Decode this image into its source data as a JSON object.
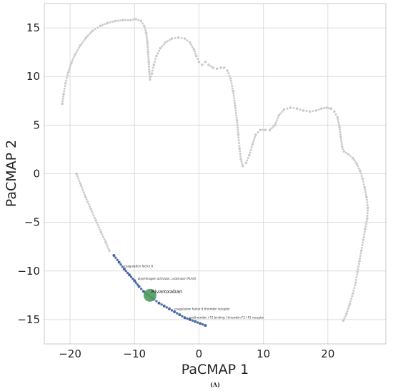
{
  "figure": {
    "caption": "(A)"
  },
  "chart_data": {
    "type": "scatter",
    "title": "",
    "xlabel": "PaCMAP 1",
    "ylabel": "PaCMAP 2",
    "xlim": [
      -24,
      29
    ],
    "ylim": [
      -17.5,
      17.5
    ],
    "xticks": [
      -20,
      -10,
      0,
      10,
      20
    ],
    "yticks": [
      -15,
      -10,
      -5,
      0,
      5,
      10,
      15
    ],
    "xtick_labels": [
      "−20",
      "−10",
      "0",
      "10",
      "20"
    ],
    "ytick_labels": [
      "−15",
      "−10",
      "−5",
      "0",
      "5",
      "10",
      "15"
    ],
    "grid": true,
    "colors": {
      "background_points": "#c8c8c8",
      "highlight_points": "#3d5f9e",
      "focus_point": "#4f9a5e"
    },
    "series": [
      {
        "role": "background",
        "color": "#c8c8c8",
        "points": [
          [
            -21.2,
            7.2
          ],
          [
            -21.0,
            8.2
          ],
          [
            -20.7,
            9.3
          ],
          [
            -20.3,
            10.4
          ],
          [
            -19.8,
            11.4
          ],
          [
            -19.2,
            12.3
          ],
          [
            -18.4,
            13.2
          ],
          [
            -17.5,
            14.0
          ],
          [
            -16.5,
            14.7
          ],
          [
            -15.3,
            15.2
          ],
          [
            -14.2,
            15.5
          ],
          [
            -13.0,
            15.7
          ],
          [
            -11.8,
            15.8
          ],
          [
            -10.6,
            15.8
          ],
          [
            -9.8,
            15.9
          ],
          [
            -9.0,
            15.7
          ],
          [
            -8.5,
            15.2
          ],
          [
            -8.2,
            14.5
          ],
          [
            -8.0,
            13.5
          ],
          [
            -7.9,
            12.5
          ],
          [
            -7.8,
            11.5
          ],
          [
            -7.7,
            10.5
          ],
          [
            -7.6,
            9.7
          ],
          [
            -7.3,
            10.3
          ],
          [
            -7.0,
            11.2
          ],
          [
            -6.6,
            12.1
          ],
          [
            -6.0,
            12.9
          ],
          [
            -5.2,
            13.5
          ],
          [
            -4.2,
            13.9
          ],
          [
            -3.2,
            14.0
          ],
          [
            -2.2,
            13.9
          ],
          [
            -1.4,
            13.5
          ],
          [
            -0.8,
            12.8
          ],
          [
            -0.4,
            12.1
          ],
          [
            0.0,
            11.5
          ],
          [
            0.5,
            11.2
          ],
          [
            1.0,
            11.5
          ],
          [
            1.5,
            11.2
          ],
          [
            2.2,
            10.9
          ],
          [
            2.8,
            10.8
          ],
          [
            3.4,
            10.9
          ],
          [
            3.9,
            10.9
          ],
          [
            4.4,
            10.6
          ],
          [
            4.9,
            9.8
          ],
          [
            5.3,
            8.5
          ],
          [
            5.6,
            7.0
          ],
          [
            5.9,
            5.5
          ],
          [
            6.1,
            4.0
          ],
          [
            6.3,
            2.6
          ],
          [
            6.5,
            1.5
          ],
          [
            6.8,
            0.8
          ],
          [
            7.3,
            1.1
          ],
          [
            7.8,
            1.9
          ],
          [
            8.3,
            3.0
          ],
          [
            8.8,
            4.0
          ],
          [
            9.5,
            4.5
          ],
          [
            10.3,
            4.5
          ],
          [
            11.0,
            4.5
          ],
          [
            11.8,
            5.0
          ],
          [
            12.4,
            6.0
          ],
          [
            13.2,
            6.6
          ],
          [
            14.2,
            6.8
          ],
          [
            15.2,
            6.7
          ],
          [
            16.2,
            6.5
          ],
          [
            17.2,
            6.4
          ],
          [
            18.2,
            6.5
          ],
          [
            19.0,
            6.7
          ],
          [
            19.8,
            6.8
          ],
          [
            20.5,
            6.7
          ],
          [
            21.0,
            6.4
          ],
          [
            21.5,
            5.8
          ],
          [
            21.8,
            4.8
          ],
          [
            22.0,
            3.8
          ],
          [
            22.2,
            2.8
          ],
          [
            22.5,
            2.3
          ],
          [
            23.2,
            2.0
          ],
          [
            23.9,
            1.6
          ],
          [
            24.5,
            1.0
          ],
          [
            25.0,
            0.3
          ],
          [
            25.4,
            -0.5
          ],
          [
            25.7,
            -1.4
          ],
          [
            26.0,
            -2.4
          ],
          [
            26.2,
            -3.5
          ],
          [
            26.1,
            -4.6
          ],
          [
            25.8,
            -5.7
          ],
          [
            25.5,
            -6.8
          ],
          [
            25.2,
            -7.9
          ],
          [
            24.9,
            -9.0
          ],
          [
            24.6,
            -10.1
          ],
          [
            24.3,
            -11.2
          ],
          [
            23.9,
            -12.3
          ],
          [
            23.4,
            -13.4
          ],
          [
            22.9,
            -14.4
          ],
          [
            22.4,
            -15.1
          ],
          [
            -19.0,
            0.0
          ],
          [
            -18.3,
            -1.2
          ],
          [
            -17.6,
            -2.4
          ],
          [
            -16.8,
            -3.6
          ],
          [
            -16.0,
            -4.8
          ],
          [
            -15.2,
            -6.0
          ],
          [
            -14.5,
            -7.0
          ],
          [
            -13.9,
            -7.9
          ]
        ]
      },
      {
        "role": "highlight",
        "color": "#3d5f9e",
        "points": [
          [
            -13.2,
            -8.4
          ],
          [
            -12.4,
            -9.1
          ],
          [
            -11.6,
            -9.8
          ],
          [
            -10.8,
            -10.4
          ],
          [
            -10.0,
            -11.0
          ],
          [
            -9.3,
            -11.6
          ],
          [
            -8.6,
            -12.1
          ],
          [
            -7.0,
            -12.9
          ],
          [
            -6.2,
            -13.3
          ],
          [
            -5.4,
            -13.6
          ],
          [
            -4.6,
            -13.9
          ],
          [
            -3.8,
            -14.2
          ],
          [
            -3.0,
            -14.5
          ],
          [
            -2.2,
            -14.8
          ],
          [
            -1.4,
            -15.0
          ],
          [
            -0.6,
            -15.2
          ],
          [
            0.2,
            -15.4
          ],
          [
            1.0,
            -15.6
          ]
        ]
      },
      {
        "role": "focus",
        "color": "#4f9a5e",
        "points": [
          [
            -7.6,
            -12.5
          ]
        ]
      }
    ],
    "annotations": [
      {
        "text": "Rivaroxaban",
        "x": -7.4,
        "y": -12.3,
        "style": "main"
      },
      {
        "text": "coagulation factor X",
        "x": -11.6,
        "y": -9.6,
        "style": "small"
      },
      {
        "text": "plasminogen activator, urokinase (PLAU)",
        "x": -9.5,
        "y": -10.9,
        "style": "small"
      },
      {
        "text": "coagulation factor II thrombin receptor",
        "x": -3.8,
        "y": -14.0,
        "style": "small"
      },
      {
        "text": "prothrombin / F2 binding / thrombin F2 / F2 receptor",
        "x": -1.5,
        "y": -14.9,
        "style": "small"
      }
    ]
  }
}
